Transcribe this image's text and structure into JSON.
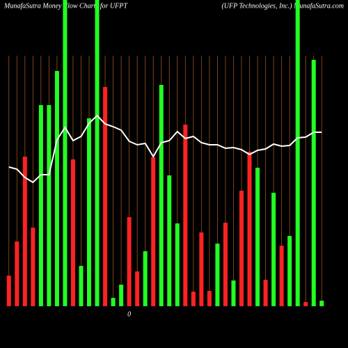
{
  "chart_data": {
    "type": "bar",
    "title": "MunafaSutra  Money Flow  Charts for UFPT",
    "subtitle": "(UFP Technologies,  Inc.) MunafaSutra.com",
    "annotation": "0",
    "categories": [
      null,
      null,
      null,
      null,
      null,
      null,
      null,
      null,
      null,
      null,
      null,
      null,
      null,
      null,
      null,
      null,
      null,
      null,
      null,
      null,
      null,
      null,
      null,
      null,
      null,
      null,
      null,
      null,
      null,
      null,
      null,
      null,
      null,
      null,
      null,
      null,
      null,
      null,
      null,
      null
    ],
    "values": [
      44,
      93,
      215,
      113,
      289,
      289,
      338,
      440,
      211,
      58,
      270,
      440,
      315,
      12,
      31,
      128,
      50,
      79,
      214,
      318,
      188,
      119,
      261,
      21,
      106,
      22,
      90,
      120,
      37,
      166,
      222,
      199,
      38,
      163,
      87,
      101,
      440,
      6,
      354,
      8
    ],
    "colors": [
      "#ff2222",
      "#ff2222",
      "#ff2222",
      "#ff2222",
      "#22ff22",
      "#22ff22",
      "#22ff22",
      "#22ff22",
      "#ff2222",
      "#22ff22",
      "#22ff22",
      "#22ff22",
      "#ff2222",
      "#22ff22",
      "#22ff22",
      "#ff2222",
      "#ff2222",
      "#22ff22",
      "#ff2222",
      "#22ff22",
      "#22ff22",
      "#22ff22",
      "#ff2222",
      "#ff2222",
      "#ff2222",
      "#ff2222",
      "#22ff22",
      "#ff2222",
      "#22ff22",
      "#ff2222",
      "#ff2222",
      "#22ff22",
      "#ff2222",
      "#22ff22",
      "#ff2222",
      "#22ff22",
      "#22ff22",
      "#ff2222",
      "#22ff22",
      "#22ff22"
    ],
    "line": {
      "color": "#ffffff",
      "values": [
        200,
        197,
        185,
        178,
        189,
        189,
        239,
        257,
        238,
        244,
        263,
        274,
        262,
        258,
        253,
        237,
        232,
        234,
        215,
        235,
        238,
        251,
        241,
        244,
        235,
        232,
        232,
        227,
        228,
        225,
        218,
        224,
        226,
        233,
        230,
        231,
        242,
        243,
        250,
        250
      ]
    },
    "ylim": [
      0,
      440
    ],
    "grid_color": "#a0521e"
  }
}
